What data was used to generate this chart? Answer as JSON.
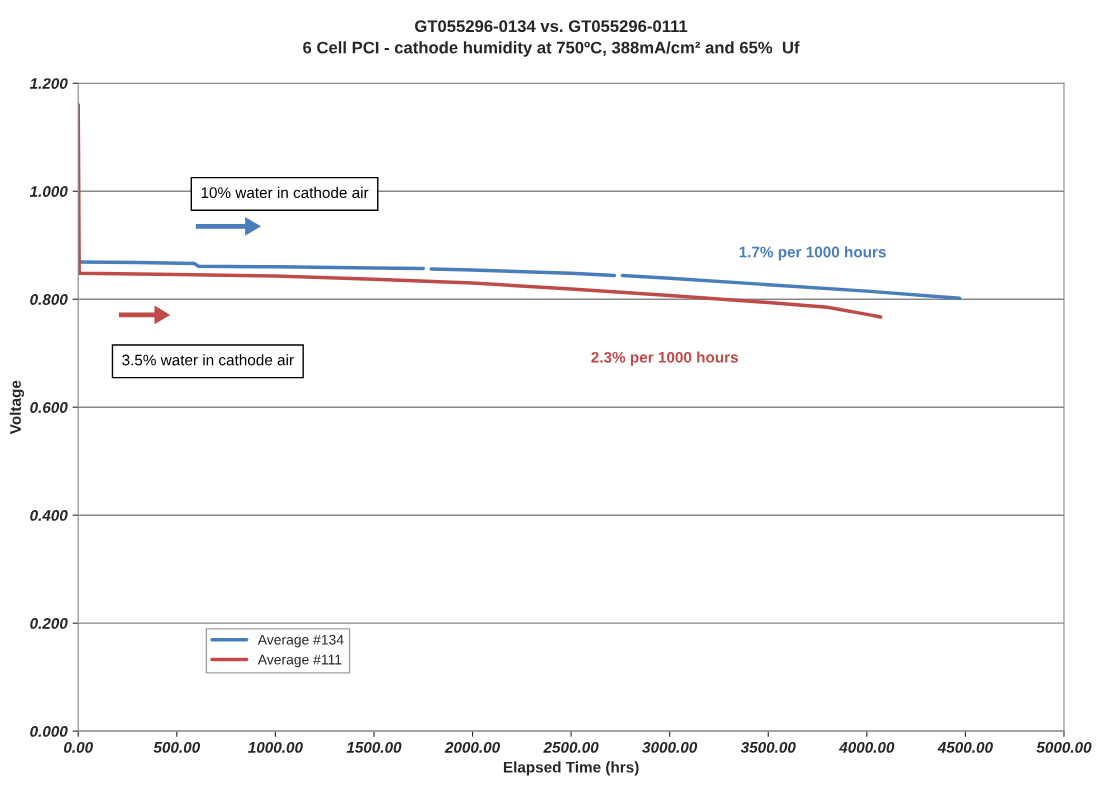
{
  "chart_data": {
    "type": "line",
    "title": "GT055296-0134 vs. GT055296-0111",
    "subtitle": "6 Cell PCI - cathode humidity at 750ºC, 388mA/cm² and 65%  Uf",
    "xlabel": "Elapsed Time (hrs)",
    "ylabel": "Voltage",
    "series": [
      {
        "name": "Average #134",
        "color": "#4a7ebb",
        "x": [
          0,
          300,
          590,
          610,
          1000,
          1500,
          1750,
          1770,
          1790,
          2000,
          2500,
          2720,
          2740,
          2760,
          3000,
          3500,
          4000,
          4470
        ],
        "values": [
          0.869,
          0.868,
          0.866,
          0.861,
          0.86,
          0.858,
          0.857,
          null,
          0.856,
          0.854,
          0.848,
          0.844,
          null,
          0.844,
          0.839,
          0.827,
          0.815,
          0.802
        ]
      },
      {
        "name": "Average #111",
        "color": "#be4b48",
        "x": [
          0,
          5,
          500,
          1000,
          1500,
          2000,
          2500,
          3000,
          3500,
          3800,
          4000,
          4070
        ],
        "values": [
          1.16,
          0.848,
          0.846,
          0.843,
          0.837,
          0.83,
          0.819,
          0.807,
          0.794,
          0.785,
          0.772,
          0.767
        ]
      }
    ],
    "xlim": [
      0,
      5000
    ],
    "ylim": [
      0,
      1.2
    ],
    "xticks": [
      {
        "value": 0,
        "label": "0.00"
      },
      {
        "value": 500,
        "label": "500.00"
      },
      {
        "value": 1000,
        "label": "1000.00"
      },
      {
        "value": 1500,
        "label": "1500.00"
      },
      {
        "value": 2000,
        "label": "2000.00"
      },
      {
        "value": 2500,
        "label": "2500.00"
      },
      {
        "value": 3000,
        "label": "3000.00"
      },
      {
        "value": 3500,
        "label": "3500.00"
      },
      {
        "value": 4000,
        "label": "4000.00"
      },
      {
        "value": 4500,
        "label": "4500.00"
      },
      {
        "value": 5000,
        "label": "5000.00"
      }
    ],
    "yticks": [
      {
        "value": 0,
        "label": "0.000"
      },
      {
        "value": 0.2,
        "label": "0.200"
      },
      {
        "value": 0.4,
        "label": "0.400"
      },
      {
        "value": 0.6,
        "label": "0.600"
      },
      {
        "value": 0.8,
        "label": "0.800"
      },
      {
        "value": 1.0,
        "label": "1.000"
      },
      {
        "value": 1.2,
        "label": "1.200"
      }
    ],
    "annotations": [
      "10% water in cathode air",
      "3.5% water in cathode air",
      "1.7% per 1000 hours",
      "2.3% per 1000 hours"
    ],
    "grid": "y",
    "legend": "bottom left",
    "marker": "none",
    "line_style": "solid"
  }
}
